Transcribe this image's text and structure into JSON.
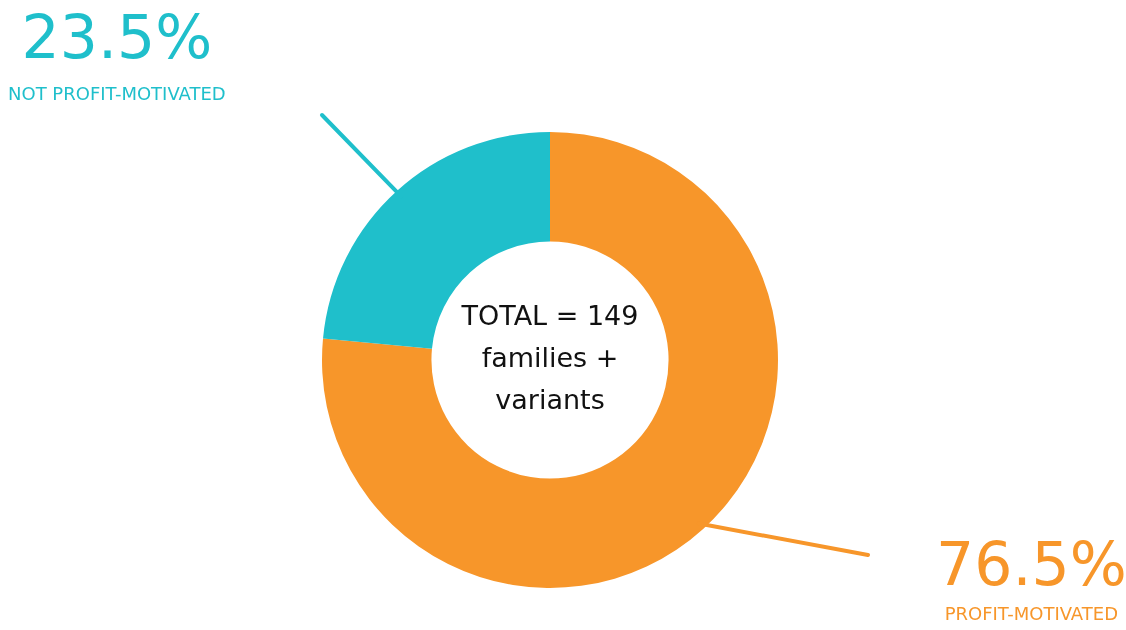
{
  "chart_data": {
    "type": "donut",
    "categories": [
      "PROFIT-MOTIVATED",
      "NOT PROFIT-MOTIVATED"
    ],
    "values": [
      76.5,
      23.5
    ],
    "colors": [
      "#f7962a",
      "#1fbfcb"
    ],
    "value_labels": [
      "76.5%",
      "23.5%"
    ],
    "annotations": [
      "TOTAL = 149 families + variants"
    ],
    "legend": false
  }
}
